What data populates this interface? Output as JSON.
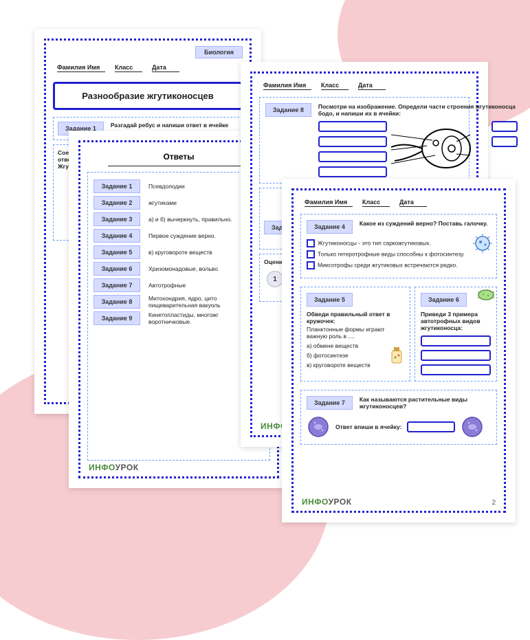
{
  "bg": {
    "blobs": "#f7ccd0"
  },
  "sheet1": {
    "header": {
      "name": "Фамилия Имя",
      "class": "Класс",
      "date": "Дата"
    },
    "subject": "Биология",
    "title": "Разнообразие жгутиконосцев",
    "task1_label": "Задание 1",
    "task1_text": "Разгадай ребус и напиши ответ в ячейке",
    "partial_text": "Соеди\nответ\nЖгути"
  },
  "sheet2": {
    "title": "Ответы",
    "rows": [
      {
        "label": "Задание 1",
        "ans": "Псевдоподии"
      },
      {
        "label": "Задание 2",
        "ans": "жгутиками"
      },
      {
        "label": "Задание 3",
        "ans": "а) и б) вычеркнуть, правильно."
      },
      {
        "label": "Задание 4",
        "ans": "Первое суждение верно."
      },
      {
        "label": "Задание 5",
        "ans": "в) круговороте веществ"
      },
      {
        "label": "Задание 6",
        "ans": "Хризомонадовые, вольво"
      },
      {
        "label": "Задание 7",
        "ans": "Автотрофные"
      },
      {
        "label": "Задание 8",
        "ans": "Митохондрия, ядро, цито\nпищеварительная вакуоль"
      },
      {
        "label": "Задание 9",
        "ans": "Кинетопластиды, многожг\nворотничковые."
      }
    ]
  },
  "sheet3": {
    "header": {
      "name": "Фамилия Имя",
      "class": "Класс",
      "date": "Дата"
    },
    "task8_label": "Задание 8",
    "task8_text": "Посмотри на изображение. Определи части строения жгутиконосца бодо, и напиши их в ячейки:",
    "task_partial": "Задан",
    "eval": "Оцени св",
    "num": "1"
  },
  "sheet4": {
    "header": {
      "name": "Фамилия Имя",
      "class": "Класс",
      "date": "Дата"
    },
    "task4_label": "Задание 4",
    "task4_text": "Какое из суждений верно? Поставь галочку.",
    "task4_opts": [
      "Жгутиконосцы - это тип саркожгутиковых.",
      "Только гетеротрофные виды способны к фотосинтезу.",
      "Миксотрофы среди жгутиковых встречаются редко."
    ],
    "task5_label": "Задание 5",
    "task5_title": "Обведи правильный ответ в кружочек:",
    "task5_text": "Планктонные формы играют важную роль в ....",
    "task5_opts": [
      "а) обмене веществ",
      "б) фотосинтезе",
      "в) круговороте веществ"
    ],
    "task6_label": "Задание 6",
    "task6_text": "Приведи 3 примера автотрофных видов жгутиконосца:",
    "task7_label": "Задание 7",
    "task7_text": "Как называются растительные виды жгутиконосцев?",
    "task7_hint": "Ответ впиши в ячейку:",
    "page": "2"
  },
  "logo": {
    "prefix": "ИНФО",
    "suffix": "УРОК"
  }
}
